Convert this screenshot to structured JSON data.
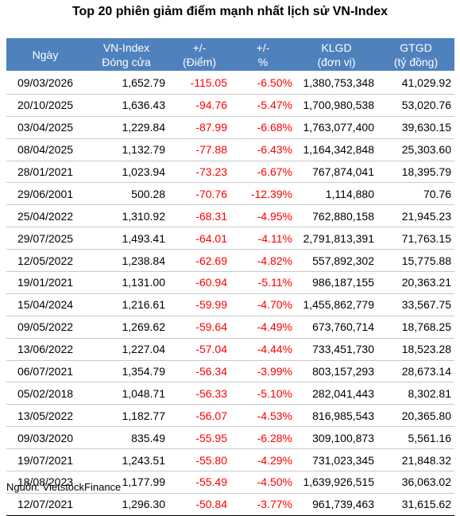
{
  "title": "Top 20 phiên giảm điểm mạnh nhất lịch sử VN-Index",
  "colors": {
    "header_bg": "#4f81bd",
    "header_text": "#ffffff",
    "negative": "#ff0000"
  },
  "headers": [
    {
      "line1": "Ngày",
      "line2": ""
    },
    {
      "line1": "VN-Index",
      "line2": "Đóng cửa"
    },
    {
      "line1": "+/-",
      "line2": "(Điểm)"
    },
    {
      "line1": "+/-",
      "line2": "%"
    },
    {
      "line1": "KLGD",
      "line2": "(đơn vị)"
    },
    {
      "line1": "GTGD",
      "line2": "(tỷ đồng)"
    }
  ],
  "rows": [
    [
      "09/03/2026",
      "1,652.79",
      "-115.05",
      "-6.50%",
      "1,380,753,348",
      "41,029.92"
    ],
    [
      "20/10/2025",
      "1,636.43",
      "-94.76",
      "-5.47%",
      "1,700,980,538",
      "53,020.76"
    ],
    [
      "03/04/2025",
      "1,229.84",
      "-87.99",
      "-6.68%",
      "1,763,077,400",
      "39,630.15"
    ],
    [
      "08/04/2025",
      "1,132.79",
      "-77.88",
      "-6.43%",
      "1,164,342,848",
      "25,303.60"
    ],
    [
      "28/01/2021",
      "1,023.94",
      "-73.23",
      "-6.67%",
      "767,874,041",
      "18,395.79"
    ],
    [
      "29/06/2001",
      "500.28",
      "-70.76",
      "-12.39%",
      "1,114,880",
      "70.76"
    ],
    [
      "25/04/2022",
      "1,310.92",
      "-68.31",
      "-4.95%",
      "762,880,158",
      "21,945.23"
    ],
    [
      "29/07/2025",
      "1,493.41",
      "-64.01",
      "-4.11%",
      "2,791,813,391",
      "71,763.15"
    ],
    [
      "12/05/2022",
      "1,238.84",
      "-62.69",
      "-4.82%",
      "557,892,302",
      "15,775.88"
    ],
    [
      "19/01/2021",
      "1,131.00",
      "-60.94",
      "-5.11%",
      "986,187,155",
      "20,363.21"
    ],
    [
      "15/04/2024",
      "1,216.61",
      "-59.99",
      "-4.70%",
      "1,455,862,779",
      "33,567.75"
    ],
    [
      "09/05/2022",
      "1,269.62",
      "-59.64",
      "-4.49%",
      "673,760,714",
      "18,768.25"
    ],
    [
      "13/06/2022",
      "1,227.04",
      "-57.04",
      "-4.44%",
      "733,451,730",
      "18,523.28"
    ],
    [
      "06/07/2021",
      "1,354.79",
      "-56.34",
      "-3.99%",
      "803,157,293",
      "28,673.14"
    ],
    [
      "05/02/2018",
      "1,048.71",
      "-56.33",
      "-5.10%",
      "282,041,443",
      "8,302.81"
    ],
    [
      "13/05/2022",
      "1,182.77",
      "-56.07",
      "-4.53%",
      "816,985,543",
      "20,365.80"
    ],
    [
      "09/03/2020",
      "835.49",
      "-55.95",
      "-6.28%",
      "309,100,873",
      "5,561.16"
    ],
    [
      "19/07/2021",
      "1,243.51",
      "-55.80",
      "-4.29%",
      "731,023,345",
      "21,848.32"
    ],
    [
      "18/08/2023",
      "1,177.99",
      "-55.49",
      "-4.50%",
      "1,639,926,515",
      "36,063.02"
    ],
    [
      "12/07/2021",
      "1,296.30",
      "-50.84",
      "-3.77%",
      "961,739,463",
      "31,615.62"
    ]
  ],
  "source": "Nguồn: VietstockFinance"
}
